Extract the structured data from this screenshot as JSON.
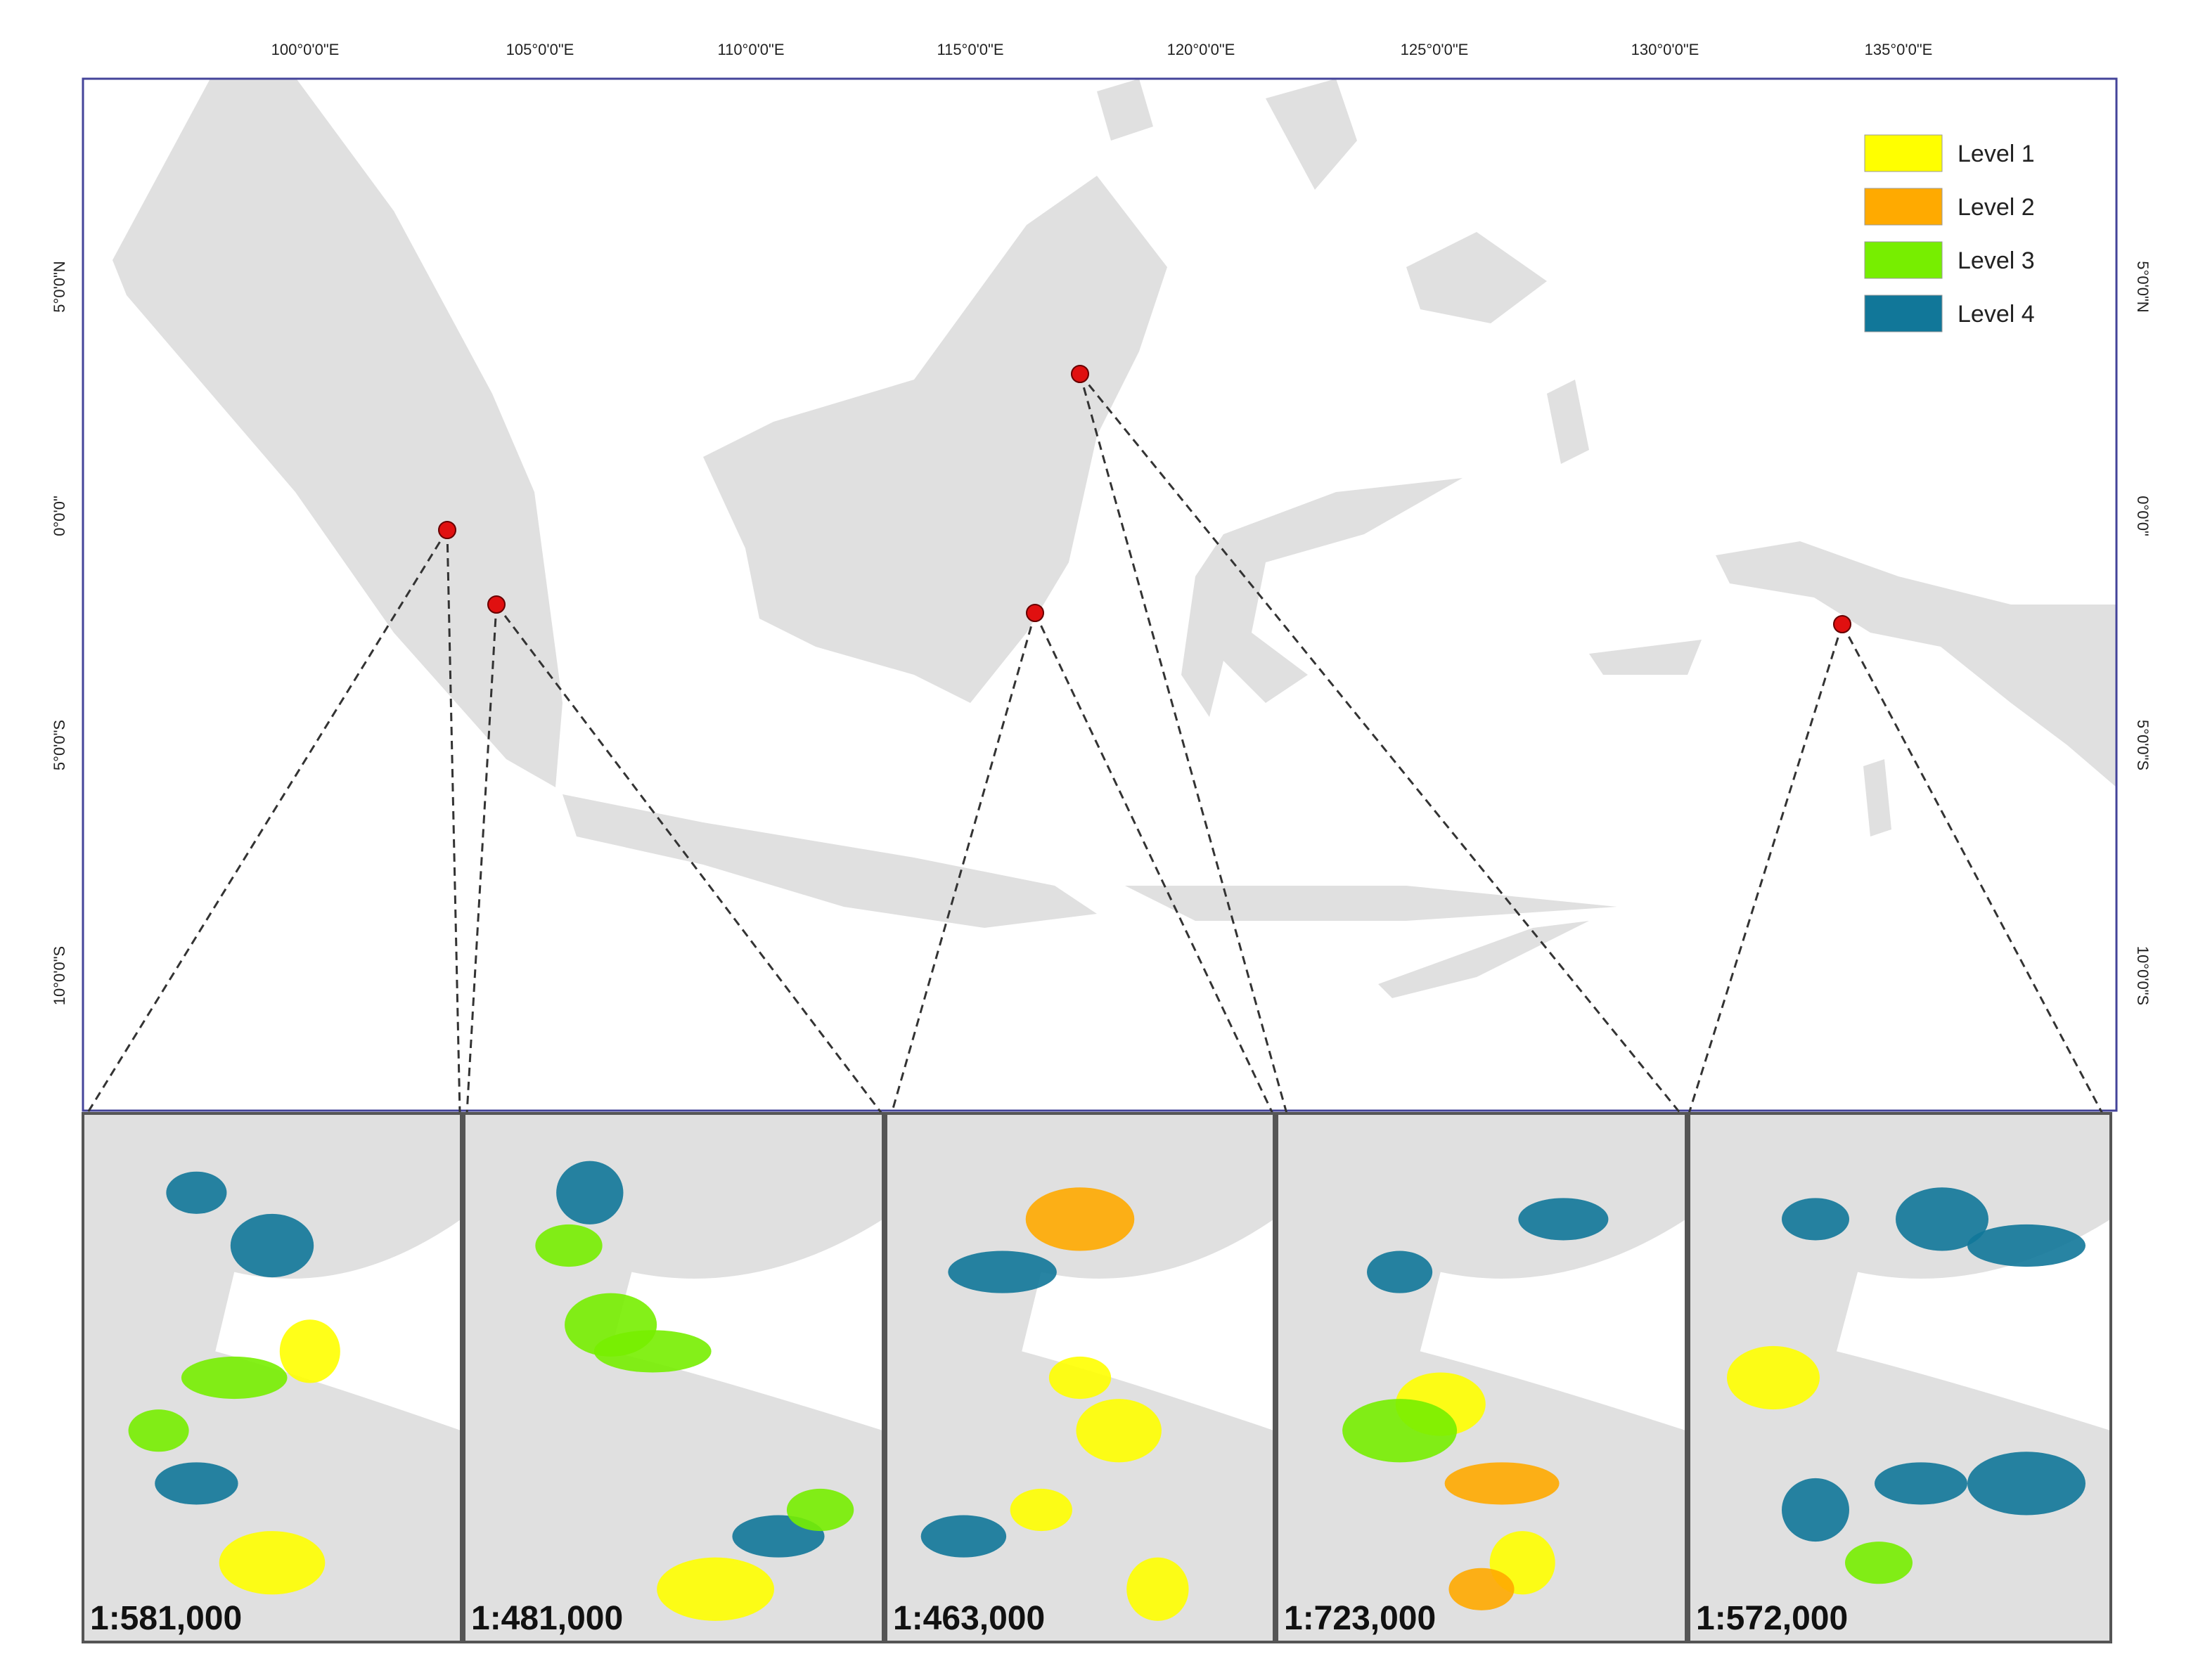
{
  "map": {
    "lon_labels": [
      "100°0'0\"E",
      "105°0'0\"E",
      "110°0'0\"E",
      "115°0'0\"E",
      "120°0'0\"E",
      "125°0'0\"E",
      "130°0'0\"E",
      "135°0'0\"E"
    ],
    "lat_labels": [
      "5°0'0\"N",
      "0°0'0\"",
      "5°0'0\"S",
      "10°0'0\"S"
    ],
    "legend": [
      {
        "label": "Level 1",
        "color": "#ffff00"
      },
      {
        "label": "Level 2",
        "color": "#ffaa00"
      },
      {
        "label": "Level 3",
        "color": "#77ee00"
      },
      {
        "label": "Level 4",
        "color": "#117799"
      }
    ],
    "insets": [
      {
        "scale": "1:581,000"
      },
      {
        "scale": "1:481,000"
      },
      {
        "scale": "1:463,000"
      },
      {
        "scale": "1:723,000"
      },
      {
        "scale": "1:572,000"
      }
    ]
  }
}
